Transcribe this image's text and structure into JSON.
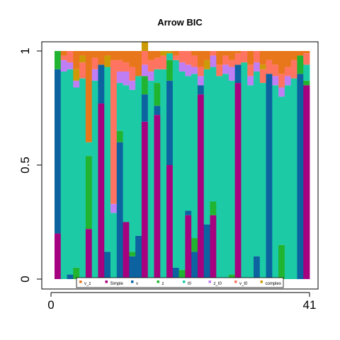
{
  "chart_data": {
    "type": "bar",
    "title": "Arrow BIC",
    "xlabel": "",
    "ylabel": "",
    "x_ticks": [
      "0",
      "41"
    ],
    "y_ticks": [
      "0",
      "0.5",
      "1"
    ],
    "ylim": [
      0,
      1
    ],
    "n_bars": 41,
    "grid": false,
    "legend_position": "bottom",
    "legend": [
      "v_z",
      "Simple",
      "v",
      "z",
      "t0",
      "z_t0",
      "v_t0",
      "complex"
    ],
    "colors": {
      "v_z": "#e8761a",
      "Simple": "#a6017f",
      "v": "#0c63a0",
      "z": "#21b431",
      "t0": "#1ccaa5",
      "z_t0": "#c07ef5",
      "v_t0": "#ff7461",
      "complex": "#cc9a06"
    },
    "series_order": [
      "Simple",
      "v",
      "z",
      "t0",
      "z_t0",
      "v_t0",
      "complex",
      "v_z"
    ],
    "series": [
      {
        "name": "Simple",
        "values": [
          0.2,
          0.0,
          0.0,
          0.0,
          0.0,
          0.22,
          0.0,
          0.77,
          0.0,
          0.0,
          0.0,
          0.25,
          0.0,
          0.0,
          0.69,
          0.0,
          0.72,
          0.0,
          0.5,
          0.0,
          0.0,
          0.28,
          0.0,
          0.81,
          0.0,
          0.28,
          0.0,
          0.0,
          0.0,
          0.86,
          0.0,
          0.0,
          0.0,
          0.0,
          0.0,
          0.0,
          0.0,
          0.0,
          0.0,
          0.0,
          0.85
        ]
      },
      {
        "name": "v",
        "values": [
          0.72,
          0.0,
          0.02,
          0.0,
          0.0,
          0.0,
          0.0,
          0.17,
          0.12,
          0.0,
          0.6,
          0.0,
          0.1,
          0.19,
          0.12,
          0.0,
          0.04,
          0.0,
          0.37,
          0.05,
          0.0,
          0.02,
          0.12,
          0.04,
          0.24,
          0.0,
          0.0,
          0.0,
          0.0,
          0.08,
          0.0,
          0.0,
          0.1,
          0.0,
          0.9,
          0.0,
          0.0,
          0.0,
          0.0,
          0.9,
          0.0
        ]
      },
      {
        "name": "z",
        "values": [
          0.08,
          0.0,
          0.0,
          0.05,
          0.0,
          0.32,
          0.0,
          0.0,
          0.0,
          0.0,
          0.05,
          0.0,
          0.02,
          0.0,
          0.08,
          0.0,
          0.1,
          0.0,
          0.09,
          0.0,
          0.04,
          0.0,
          0.06,
          0.0,
          0.0,
          0.06,
          0.0,
          0.0,
          0.02,
          0.0,
          0.0,
          0.0,
          0.0,
          0.0,
          0.0,
          0.0,
          0.15,
          0.0,
          0.0,
          0.08,
          0.02
        ]
      },
      {
        "name": "t0",
        "values": [
          0.0,
          0.91,
          0.9,
          0.79,
          0.88,
          0.06,
          0.87,
          0.0,
          0.81,
          0.29,
          0.21,
          0.6,
          0.71,
          0.7,
          0.0,
          0.87,
          0.06,
          0.92,
          0.03,
          0.91,
          0.87,
          0.59,
          0.72,
          0.0,
          0.68,
          0.59,
          0.89,
          0.9,
          0.85,
          0.0,
          0.95,
          0.85,
          0.81,
          0.86,
          0.0,
          0.85,
          0.65,
          0.85,
          0.88,
          0.0,
          0.07
        ]
      },
      {
        "name": "z_t0",
        "values": [
          0.0,
          0.05,
          0.03,
          0.03,
          0.0,
          0.0,
          0.05,
          0.0,
          0.0,
          0.04,
          0.05,
          0.06,
          0.04,
          0.0,
          0.05,
          0.04,
          0.0,
          0.0,
          0.0,
          0.0,
          0.04,
          0.05,
          0.03,
          0.04,
          0.0,
          0.05,
          0.0,
          0.04,
          0.06,
          0.0,
          0.0,
          0.04,
          0.04,
          0.0,
          0.0,
          0.04,
          0.04,
          0.04,
          0.0,
          0.0,
          0.0
        ]
      },
      {
        "name": "v_t0",
        "values": [
          0.0,
          0.02,
          0.05,
          0.0,
          0.07,
          0.0,
          0.05,
          0.0,
          0.0,
          0.63,
          0.05,
          0.04,
          0.06,
          0.0,
          0.06,
          0.05,
          0.05,
          0.06,
          0.0,
          0.02,
          0.05,
          0.06,
          0.05,
          0.04,
          0.0,
          0.02,
          0.05,
          0.04,
          0.03,
          0.05,
          0.05,
          0.05,
          0.05,
          0.06,
          0.06,
          0.05,
          0.06,
          0.04,
          0.08,
          0.0,
          0.05
        ]
      },
      {
        "name": "complex",
        "values": [
          0.0,
          0.0,
          0.0,
          0.05,
          0.03,
          0.0,
          0.0,
          0.0,
          0.05,
          0.0,
          0.0,
          0.0,
          0.0,
          0.0,
          0.04,
          0.0,
          0.0,
          0.02,
          0.01,
          0.0,
          0.0,
          0.0,
          0.0,
          0.0,
          0.04,
          0.0,
          0.0,
          0.0,
          0.0,
          0.0,
          0.0,
          0.0,
          0.0,
          0.02,
          0.0,
          0.0,
          0.0,
          0.0,
          0.0,
          0.0,
          0.0
        ]
      },
      {
        "name": "v_z",
        "values": [
          0.0,
          0.02,
          0.0,
          0.08,
          0.02,
          0.4,
          0.03,
          0.06,
          0.02,
          0.04,
          0.04,
          0.05,
          0.07,
          0.11,
          0.0,
          0.04,
          0.03,
          0.0,
          0.0,
          0.02,
          0.0,
          0.0,
          0.02,
          0.07,
          0.04,
          0.0,
          0.06,
          0.02,
          0.04,
          0.01,
          0.0,
          0.06,
          0.0,
          0.06,
          0.04,
          0.06,
          0.1,
          0.07,
          0.04,
          0.02,
          0.01
        ]
      }
    ]
  }
}
